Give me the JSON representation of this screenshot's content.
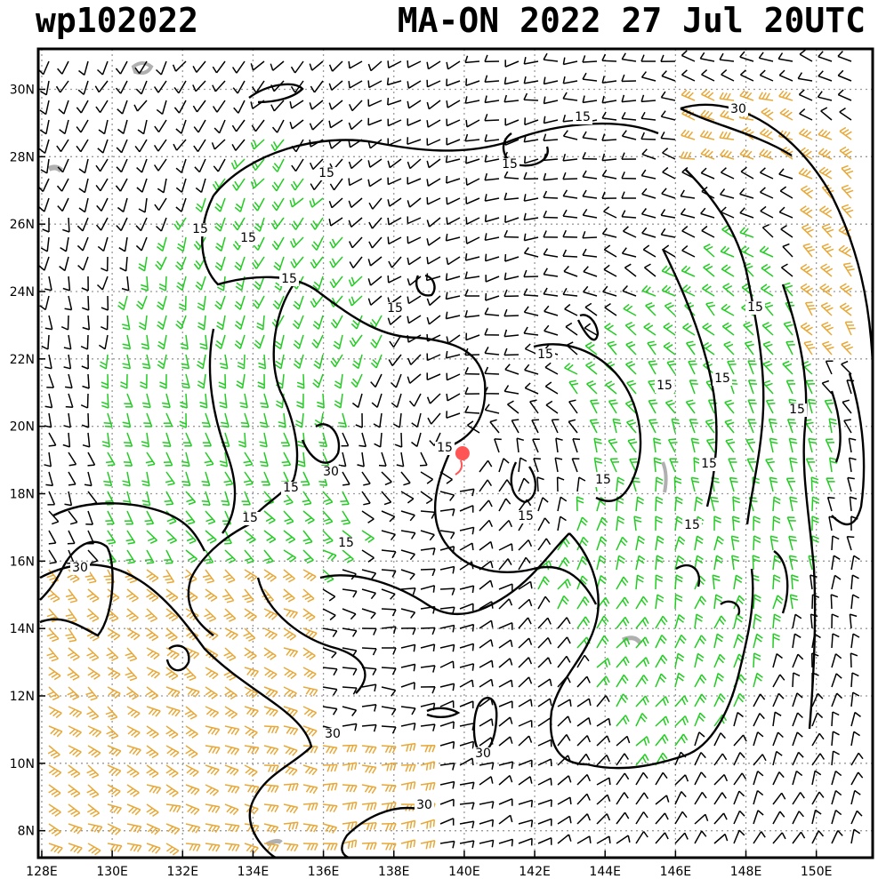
{
  "header": {
    "storm_id": "wp102022",
    "storm_info": "MA-ON 2022 27 Jul 20UTC"
  },
  "axes": {
    "lon_labels": [
      "128E",
      "130E",
      "132E",
      "134E",
      "136E",
      "138E",
      "140E",
      "142E",
      "144E",
      "146E",
      "148E",
      "150E"
    ],
    "lat_labels": [
      "30N",
      "28N",
      "26N",
      "24N",
      "22N",
      "20N",
      "18N",
      "16N",
      "14N",
      "12N",
      "10N",
      "8N"
    ]
  },
  "contour_labels": [
    "30",
    "30",
    "30",
    "30",
    "30",
    "30",
    "15",
    "15",
    "15",
    "15",
    "15",
    "15",
    "15",
    "15",
    "15",
    "15",
    "15",
    "15",
    "15",
    "15",
    "15",
    "15",
    "15",
    "15",
    "15",
    "15"
  ],
  "colors": {
    "calm_barb": "#000000",
    "moderate_barb": "#22cc22",
    "strong_barb": "#e8a838",
    "storm_center": "#ff5555",
    "grid": "#999999",
    "land": "#b0b0b0"
  },
  "map": {
    "lon_range": [
      127.9,
      151.6
    ],
    "lat_range": [
      7.2,
      31.2
    ],
    "storm_center": {
      "lon": 139.95,
      "lat": 19.2
    }
  }
}
